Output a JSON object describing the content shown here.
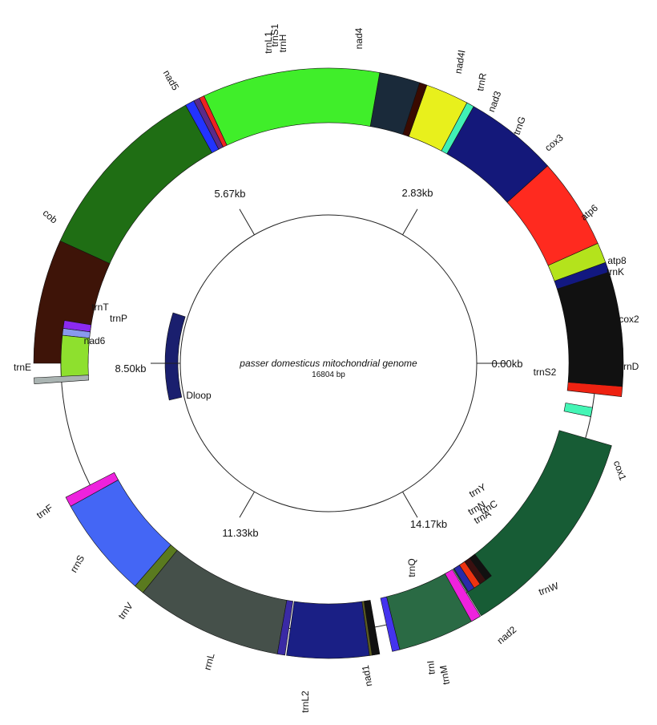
{
  "genome": {
    "name": "passer domesticus mitochondrial genome",
    "length_label": "16804 bp",
    "length_bp": 16804
  },
  "ticks": [
    {
      "label": "0.00kb",
      "pos_kb": 0.0
    },
    {
      "label": "2.83kb",
      "pos_kb": 2.83
    },
    {
      "label": "5.67kb",
      "pos_kb": 5.67
    },
    {
      "label": "8.50kb",
      "pos_kb": 8.5
    },
    {
      "label": "11.33kb",
      "pos_kb": 11.33
    },
    {
      "label": "14.17kb",
      "pos_kb": 14.17
    }
  ],
  "features": [
    {
      "name": "cox1",
      "start": 16.2,
      "end": 58.8,
      "color": "#175c35",
      "track": "inner"
    },
    {
      "name": "trnS2",
      "start": 9.5,
      "end": 11.5,
      "color": "#44f5b5",
      "track": "mid"
    },
    {
      "name": "trnD",
      "start": 4.5,
      "end": 6.5,
      "color": "#ee2211",
      "track": "outer"
    },
    {
      "name": "cox2",
      "start": -18.0,
      "end": 4.5,
      "color": "#111111",
      "track": "outer"
    },
    {
      "name": "trnK",
      "start": -20.0,
      "end": -18.0,
      "color": "#121880",
      "track": "outer"
    },
    {
      "name": "atp8",
      "start": -24.0,
      "end": -20.0,
      "color": "#b4e31c",
      "track": "outer"
    },
    {
      "name": "atp6",
      "start": -42.0,
      "end": -24.0,
      "color": "#ff2a1f",
      "track": "outer"
    },
    {
      "name": "cox3",
      "start": -60.5,
      "end": -42.0,
      "color": "#14187a",
      "track": "outer"
    },
    {
      "name": "trnG",
      "start": -62.0,
      "end": -60.5,
      "color": "#40f0b5",
      "track": "outer"
    },
    {
      "name": "nad3",
      "start": -70.5,
      "end": -62.0,
      "color": "#e8f01c",
      "track": "outer"
    },
    {
      "name": "trnR",
      "start": -72.0,
      "end": -70.5,
      "color": "#3a0a00",
      "track": "outer"
    },
    {
      "name": "nad4l",
      "start": -80.0,
      "end": -72.0,
      "color": "#1a2a3a",
      "track": "outer"
    },
    {
      "name": "nad4",
      "start": -115.0,
      "end": -80.0,
      "color": "#40ee2a",
      "track": "outer"
    },
    {
      "name": "trnH",
      "start": -116.0,
      "end": -115.0,
      "color": "#ee2222",
      "track": "outer"
    },
    {
      "name": "trnS1",
      "start": -117.2,
      "end": -116.0,
      "color": "#5a2a8a",
      "track": "outer"
    },
    {
      "name": "trnL1",
      "start": -119.0,
      "end": -117.2,
      "color": "#2233ff",
      "track": "outer"
    },
    {
      "name": "nad5",
      "start": -160.0,
      "end": -119.0,
      "color": "#1f6e14",
      "track": "outer"
    },
    {
      "name": "cob",
      "start": -180.0,
      "end": -155.5,
      "color": "#3e1408",
      "track": "outer"
    },
    {
      "name": "trnT",
      "start": 187.5,
      "end": 189.2,
      "color": "#8b2af0",
      "track": "mid"
    },
    {
      "name": "trnP",
      "start": 186.0,
      "end": 187.5,
      "color": "#8899ee",
      "track": "mid"
    },
    {
      "name": "nad6",
      "start": 177.0,
      "end": 186.0,
      "color": "#8ee02e",
      "track": "mid"
    },
    {
      "name": "trnE",
      "start": 176.0,
      "end": 177.2,
      "color": "#aab4b2",
      "track": "outer"
    },
    {
      "name": "trnF",
      "start": 151.0,
      "end": 153.0,
      "color": "#ee22dd",
      "track": "inner"
    },
    {
      "name": "rrnS",
      "start": 131.0,
      "end": 151.0,
      "color": "#4466f5",
      "track": "inner"
    },
    {
      "name": "trnV",
      "start": 129.0,
      "end": 131.0,
      "color": "#5a7a1f",
      "track": "inner"
    },
    {
      "name": "rrnL",
      "start": 100.0,
      "end": 129.0,
      "color": "#45504a",
      "track": "inner"
    },
    {
      "name": "trnL2",
      "start": 98.5,
      "end": 100.0,
      "color": "#3a2aa5",
      "track": "inner"
    },
    {
      "name": "nad1",
      "start": 82.0,
      "end": 98.2,
      "color": "#1a1f85",
      "track": "inner"
    },
    {
      "name": "trnI",
      "start": 80.5,
      "end": 82.0,
      "color": "#5a5a22",
      "track": "inner"
    },
    {
      "name": "trnQ",
      "start": 80.0,
      "end": 81.5,
      "color": "#111111",
      "track": "outer"
    },
    {
      "name": "trnM",
      "start": 76.0,
      "end": 77.5,
      "color": "#4433ee",
      "track": "inner"
    },
    {
      "name": "nad2",
      "start": 60.0,
      "end": 76.0,
      "color": "#2a6a44",
      "track": "inner"
    },
    {
      "name": "trnW",
      "start": 59.0,
      "end": 61.0,
      "color": "#ee22dd",
      "track": "inner"
    },
    {
      "name": "trnA",
      "start": 57.0,
      "end": 58.5,
      "color": "#2a2aaa",
      "track": "mid"
    },
    {
      "name": "trnN",
      "start": 55.5,
      "end": 57.0,
      "color": "#ee3311",
      "track": "mid"
    },
    {
      "name": "trnC",
      "start": 54.0,
      "end": 55.5,
      "color": "#3a1010",
      "track": "mid"
    },
    {
      "name": "trnY",
      "start": 52.5,
      "end": 54.0,
      "color": "#111111",
      "track": "mid"
    },
    {
      "name": "Dloop",
      "start": 167.0,
      "end": 198.0,
      "color": "#1a1f6e",
      "track": "dloop"
    }
  ]
}
